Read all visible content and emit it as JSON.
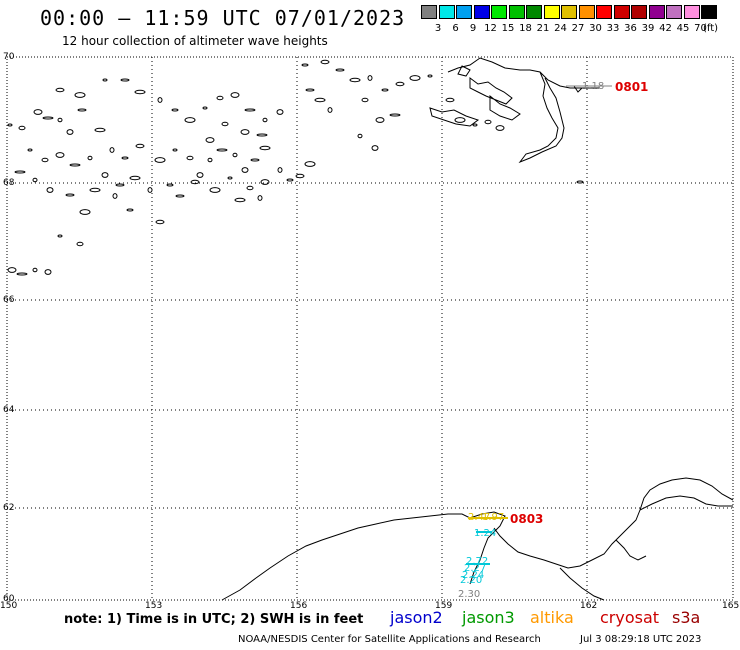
{
  "header": {
    "title": "00:00 – 11:59 UTC 07/01/2023",
    "subtitle": "12 hour collection of altimeter wave heights"
  },
  "color_scale": {
    "colors": [
      "#808080",
      "#00e8e8",
      "#00a0f0",
      "#0000e8",
      "#00e800",
      "#00c000",
      "#008800",
      "#ffff00",
      "#e0c000",
      "#ff9000",
      "#ff0000",
      "#d00000",
      "#b00000",
      "#900090",
      "#c070c0",
      "#ff90e0",
      "#000000"
    ],
    "ticks": [
      "3",
      "6",
      "9",
      "12",
      "15",
      "18",
      "21",
      "24",
      "27",
      "30",
      "33",
      "36",
      "39",
      "42",
      "45",
      "70"
    ],
    "unit": "(ft)"
  },
  "map": {
    "lat_labels": [
      "70",
      "68",
      "66",
      "64",
      "62",
      "60"
    ],
    "lon_labels": [
      "150",
      "153",
      "156",
      "159",
      "162",
      "165"
    ],
    "pass_labels": [
      "0801",
      "0803"
    ],
    "observations": [
      {
        "text": "1.18",
        "color": "#808080"
      },
      {
        "text": "2.47",
        "color": "#e0c000"
      },
      {
        "text": "1.97",
        "color": "#e0c000"
      },
      {
        "text": "1.24",
        "color": "#00c8d8"
      },
      {
        "text": "2.72",
        "color": "#00c8d8"
      },
      {
        "text": "2.27",
        "color": "#00c8d8"
      },
      {
        "text": "2.24",
        "color": "#00c8d8"
      },
      {
        "text": "2.20",
        "color": "#00c8d8"
      },
      {
        "text": "2.30",
        "color": "#808080"
      }
    ]
  },
  "legend": {
    "note": "note:  1) Time is in UTC;  2) SWH is in feet",
    "satellites": [
      {
        "name": "jason2",
        "color": "#0000cc"
      },
      {
        "name": "jason3",
        "color": "#009900"
      },
      {
        "name": "altika",
        "color": "#ff9900"
      },
      {
        "name": "cryosat",
        "color": "#cc0000"
      },
      {
        "name": "s3a",
        "color": "#990000"
      }
    ]
  },
  "footer": {
    "credit": "NOAA/NESDIS Center for Satellite Applications and Research",
    "date": "Jul  3 08:29:18 UTC 2023"
  }
}
